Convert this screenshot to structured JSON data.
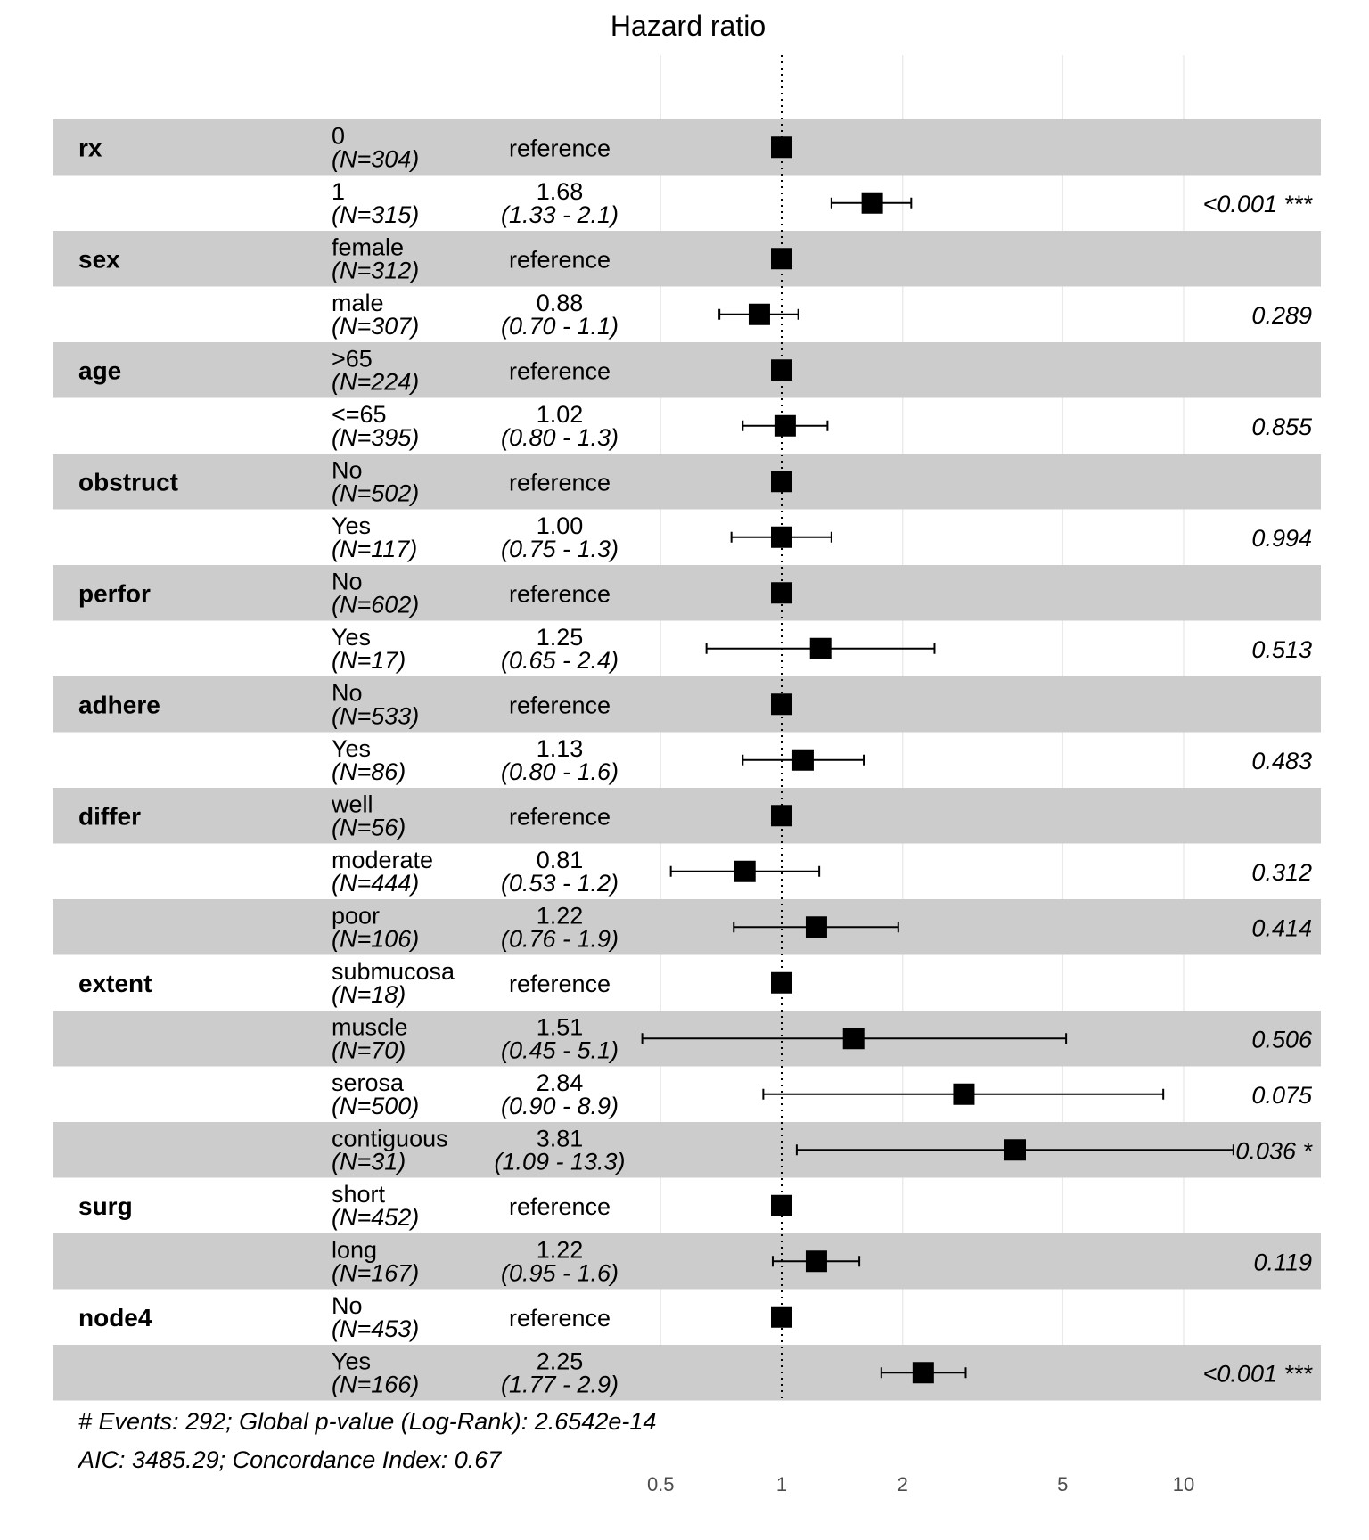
{
  "chart_data": {
    "type": "forest",
    "title": "Hazard ratio",
    "x_scale": "log",
    "xlim": [
      0.42,
      20
    ],
    "x_ticks": [
      "0.5",
      "1",
      "2",
      "5",
      "10"
    ],
    "reference_line": 1,
    "grid": true,
    "colors": {
      "band": "#cccccc",
      "marker": "#000000",
      "gridline": "#e6e6e6"
    },
    "rows": [
      {
        "var": "rx",
        "level": "0",
        "n": "(N=304)",
        "ref": "reference",
        "hr": 1.0,
        "band": true
      },
      {
        "var": "",
        "level": "1",
        "n": "(N=315)",
        "hr_label": "1.68",
        "ci_label": "(1.33 -  2.1)",
        "p": "<0.001 ***",
        "hr": 1.68,
        "lo": 1.33,
        "hi": 2.1,
        "band": false
      },
      {
        "var": "sex",
        "level": "female",
        "n": "(N=312)",
        "ref": "reference",
        "hr": 1.0,
        "band": true
      },
      {
        "var": "",
        "level": "male",
        "n": "(N=307)",
        "hr_label": "0.88",
        "ci_label": "(0.70 -  1.1)",
        "p": "0.289",
        "hr": 0.88,
        "lo": 0.7,
        "hi": 1.1,
        "band": false
      },
      {
        "var": "age",
        "level": ">65",
        "n": "(N=224)",
        "ref": "reference",
        "hr": 1.0,
        "band": true
      },
      {
        "var": "",
        "level": "<=65",
        "n": "(N=395)",
        "hr_label": "1.02",
        "ci_label": "(0.80 -  1.3)",
        "p": "0.855",
        "hr": 1.02,
        "lo": 0.8,
        "hi": 1.3,
        "band": false
      },
      {
        "var": "obstruct",
        "level": "No",
        "n": "(N=502)",
        "ref": "reference",
        "hr": 1.0,
        "band": true
      },
      {
        "var": "",
        "level": "Yes",
        "n": "(N=117)",
        "hr_label": "1.00",
        "ci_label": "(0.75 -  1.3)",
        "p": "0.994",
        "hr": 1.0,
        "lo": 0.75,
        "hi": 1.33,
        "band": false
      },
      {
        "var": "perfor",
        "level": "No",
        "n": "(N=602)",
        "ref": "reference",
        "hr": 1.0,
        "band": true
      },
      {
        "var": "",
        "level": "Yes",
        "n": "(N=17)",
        "hr_label": "1.25",
        "ci_label": "(0.65 -  2.4)",
        "p": "0.513",
        "hr": 1.25,
        "lo": 0.65,
        "hi": 2.4,
        "band": false
      },
      {
        "var": "adhere",
        "level": "No",
        "n": "(N=533)",
        "ref": "reference",
        "hr": 1.0,
        "band": true
      },
      {
        "var": "",
        "level": "Yes",
        "n": "(N=86)",
        "hr_label": "1.13",
        "ci_label": "(0.80 -  1.6)",
        "p": "0.483",
        "hr": 1.13,
        "lo": 0.8,
        "hi": 1.6,
        "band": false
      },
      {
        "var": "differ",
        "level": "well",
        "n": "(N=56)",
        "ref": "reference",
        "hr": 1.0,
        "band": true
      },
      {
        "var": "",
        "level": "moderate",
        "n": "(N=444)",
        "hr_label": "0.81",
        "ci_label": "(0.53 -  1.2)",
        "p": "0.312",
        "hr": 0.81,
        "lo": 0.53,
        "hi": 1.24,
        "band": false
      },
      {
        "var": "",
        "level": "poor",
        "n": "(N=106)",
        "hr_label": "1.22",
        "ci_label": "(0.76 -  1.9)",
        "p": "0.414",
        "hr": 1.22,
        "lo": 0.76,
        "hi": 1.95,
        "band": true
      },
      {
        "var": "extent",
        "level": "submucosa",
        "n": "(N=18)",
        "ref": "reference",
        "hr": 1.0,
        "band": false
      },
      {
        "var": "",
        "level": "muscle",
        "n": "(N=70)",
        "hr_label": "1.51",
        "ci_label": "(0.45 -  5.1)",
        "p": "0.506",
        "hr": 1.51,
        "lo": 0.45,
        "hi": 5.1,
        "band": true
      },
      {
        "var": "",
        "level": "serosa",
        "n": "(N=500)",
        "hr_label": "2.84",
        "ci_label": "(0.90 -  8.9)",
        "p": "0.075",
        "hr": 2.84,
        "lo": 0.9,
        "hi": 8.9,
        "band": false
      },
      {
        "var": "",
        "level": "contiguous",
        "n": "(N=31)",
        "hr_label": "3.81",
        "ci_label": "(1.09 - 13.3)",
        "p": "0.036 *",
        "hr": 3.81,
        "lo": 1.09,
        "hi": 13.3,
        "band": true
      },
      {
        "var": "surg",
        "level": "short",
        "n": "(N=452)",
        "ref": "reference",
        "hr": 1.0,
        "band": false
      },
      {
        "var": "",
        "level": "long",
        "n": "(N=167)",
        "hr_label": "1.22",
        "ci_label": "(0.95 -  1.6)",
        "p": "0.119",
        "hr": 1.22,
        "lo": 0.95,
        "hi": 1.56,
        "band": true
      },
      {
        "var": "node4",
        "level": "No",
        "n": "(N=453)",
        "ref": "reference",
        "hr": 1.0,
        "band": false
      },
      {
        "var": "",
        "level": "Yes",
        "n": "(N=166)",
        "hr_label": "2.25",
        "ci_label": "(1.77 -  2.9)",
        "p": "<0.001 ***",
        "hr": 2.25,
        "lo": 1.77,
        "hi": 2.87,
        "band": true
      }
    ],
    "footnote": [
      "# Events: 292; Global p-value (Log-Rank): 2.6542e-14",
      "AIC: 3485.29; Concordance Index: 0.67"
    ]
  }
}
